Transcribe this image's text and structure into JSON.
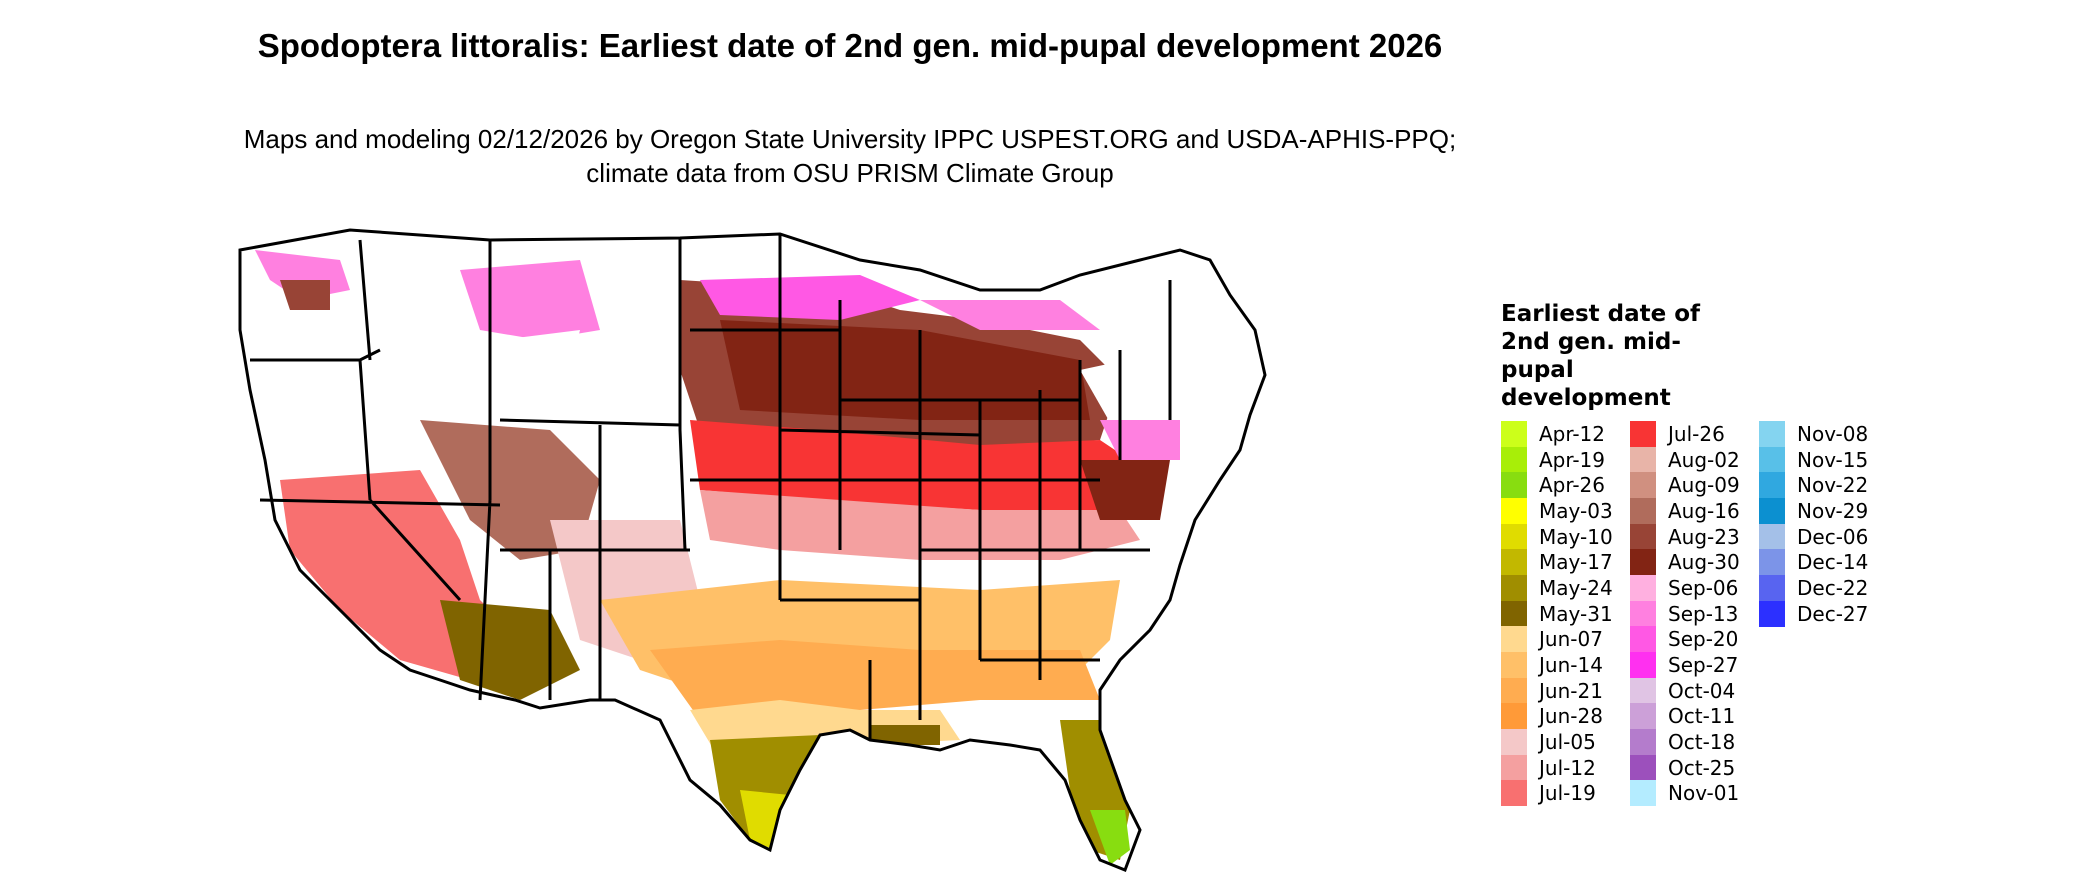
{
  "title": "Spodoptera littoralis: Earliest date of 2nd gen. mid-pupal development 2026",
  "subtitle": "Maps and modeling 02/12/2026 by Oregon State University IPPC USPEST.ORG and USDA-APHIS-PPQ; climate data from OSU PRISM Climate Group",
  "legend": {
    "title": "Earliest date of 2nd gen. mid-pupal development",
    "items": [
      {
        "label": "Apr-12",
        "color": "#ccff1a"
      },
      {
        "label": "Apr-19",
        "color": "#a8ee08"
      },
      {
        "label": "Apr-26",
        "color": "#88dd10"
      },
      {
        "label": "May-03",
        "color": "#ffff00"
      },
      {
        "label": "May-10",
        "color": "#e0dc00"
      },
      {
        "label": "May-17",
        "color": "#c2b800"
      },
      {
        "label": "May-24",
        "color": "#a08e00"
      },
      {
        "label": "May-31",
        "color": "#806400"
      },
      {
        "label": "Jun-07",
        "color": "#ffd98f"
      },
      {
        "label": "Jun-14",
        "color": "#ffc068"
      },
      {
        "label": "Jun-21",
        "color": "#ffac50"
      },
      {
        "label": "Jun-28",
        "color": "#ff9a38"
      },
      {
        "label": "Jul-05",
        "color": "#f4c8c8"
      },
      {
        "label": "Jul-12",
        "color": "#f4a0a0"
      },
      {
        "label": "Jul-19",
        "color": "#f87070"
      },
      {
        "label": "Jul-26",
        "color": "#f83434"
      },
      {
        "label": "Aug-02",
        "color": "#e8b4a8"
      },
      {
        "label": "Aug-09",
        "color": "#d09080"
      },
      {
        "label": "Aug-16",
        "color": "#b06c5c"
      },
      {
        "label": "Aug-23",
        "color": "#984436"
      },
      {
        "label": "Aug-30",
        "color": "#822414"
      },
      {
        "label": "Sep-06",
        "color": "#ffb0e0"
      },
      {
        "label": "Sep-13",
        "color": "#ff80e0"
      },
      {
        "label": "Sep-20",
        "color": "#ff58e4"
      },
      {
        "label": "Sep-27",
        "color": "#ff30f0"
      },
      {
        "label": "Oct-04",
        "color": "#e0c4e4"
      },
      {
        "label": "Oct-11",
        "color": "#cca0d8"
      },
      {
        "label": "Oct-18",
        "color": "#b47ccc"
      },
      {
        "label": "Oct-25",
        "color": "#9c50bc"
      },
      {
        "label": "Nov-01",
        "color": "#b4ecff"
      },
      {
        "label": "Nov-08",
        "color": "#84d4f0"
      },
      {
        "label": "Nov-15",
        "color": "#58c0e8"
      },
      {
        "label": "Nov-22",
        "color": "#30a8e0"
      },
      {
        "label": "Nov-29",
        "color": "#0c90d0"
      },
      {
        "label": "Dec-06",
        "color": "#a4c0e8"
      },
      {
        "label": "Dec-14",
        "color": "#7c94e8"
      },
      {
        "label": "Dec-22",
        "color": "#5864f0"
      },
      {
        "label": "Dec-27",
        "color": "#2c30ff"
      }
    ]
  },
  "map": {
    "region": "Conterminous United States",
    "state_boundary_color": "#000000",
    "no_data_color": "#ffffff"
  }
}
